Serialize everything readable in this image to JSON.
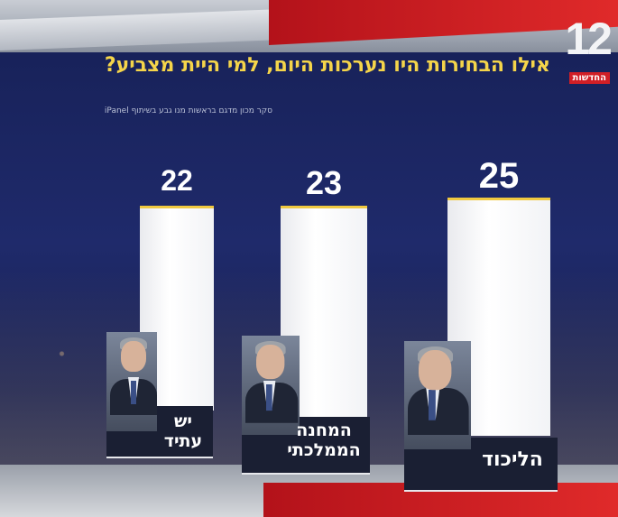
{
  "title": "אילו הבחירות היו נערכות היום, למי היית מצביע?",
  "source": "סקר מכון מדגם בראשות מנו גבע בשיתוף iPanel",
  "channel": {
    "number": "12",
    "name": "החדשות"
  },
  "colors": {
    "bar": "#ffffff",
    "title": "#f5d54a",
    "accent_red": "#d11f26",
    "background": "#1b2547"
  },
  "chart_data": {
    "type": "bar",
    "categories": [
      "הליכוד",
      "המחנה הממלכתי",
      "יש עתיד"
    ],
    "values": [
      25,
      23,
      22
    ],
    "value_labels": [
      "25",
      "23",
      "22"
    ],
    "title": "אילו הבחירות היו נערכות היום, למי היית מצביע?"
  },
  "parties": [
    {
      "label": "הליכוד",
      "value": "25"
    },
    {
      "label": "המחנה הממלכתי",
      "value": "23"
    },
    {
      "label": "יש עתיד",
      "value": "22"
    }
  ]
}
